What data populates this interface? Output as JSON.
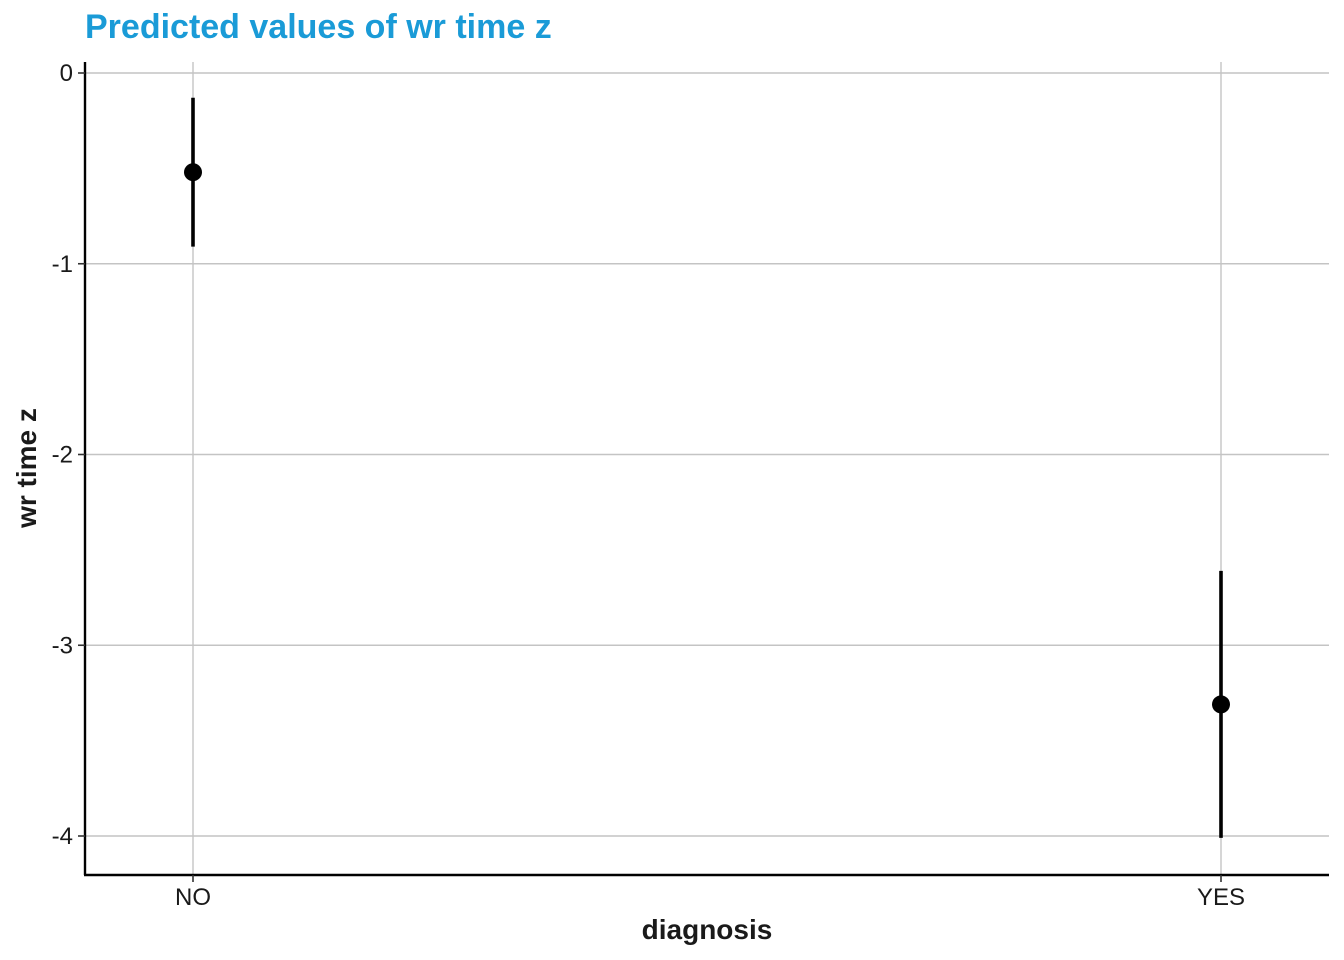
{
  "chart_data": {
    "type": "scatter",
    "title": "Predicted values of wr time z",
    "xlabel": "diagnosis",
    "ylabel": "wr time z",
    "categories": [
      "NO",
      "YES"
    ],
    "y_ticks": [
      "0",
      "-1",
      "-2",
      "-3",
      "-4"
    ],
    "y_tick_values": [
      0,
      -1,
      -2,
      -3,
      -4
    ],
    "ylim": [
      -4.2,
      0.05
    ],
    "grid": true,
    "points": [
      {
        "category": "NO",
        "y": -0.52,
        "ymin": -0.91,
        "ymax": -0.13
      },
      {
        "category": "YES",
        "y": -3.31,
        "ymin": -4.01,
        "ymax": -2.61
      }
    ],
    "colors": {
      "title": "#1a9bd7",
      "points": "#000000",
      "grid": "#c4c4c4"
    }
  }
}
